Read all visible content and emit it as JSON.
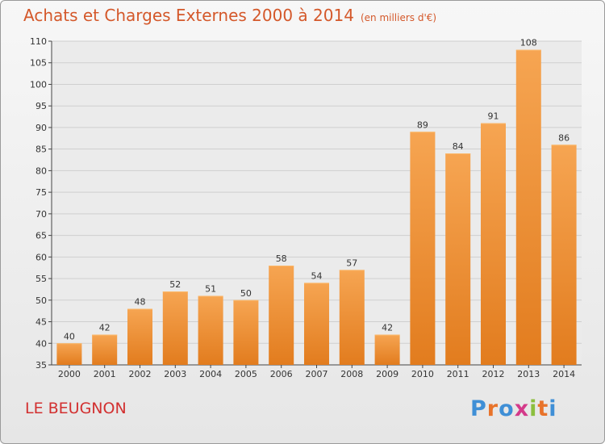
{
  "header": {
    "title": "Achats et Charges Externes 2000 à 2014",
    "unit": "(en milliers d'€)"
  },
  "footer": {
    "commune": "LE BEUGNON",
    "brand": "Proxiti"
  },
  "colors": {
    "title": "#d4582a",
    "bar": "#f0943a",
    "commune": "#d23030"
  },
  "chart_data": {
    "type": "bar",
    "title": "Achats et Charges Externes 2000 à 2014",
    "subtitle": "(en milliers d'€)",
    "categories": [
      "2000",
      "2001",
      "2002",
      "2003",
      "2004",
      "2005",
      "2006",
      "2007",
      "2008",
      "2009",
      "2010",
      "2011",
      "2012",
      "2013",
      "2014"
    ],
    "values": [
      40,
      42,
      48,
      52,
      51,
      50,
      58,
      54,
      57,
      42,
      89,
      84,
      91,
      108,
      86
    ],
    "ylim": [
      35,
      110
    ],
    "yticks": [
      35,
      40,
      45,
      50,
      55,
      60,
      65,
      70,
      75,
      80,
      85,
      90,
      95,
      100,
      105,
      110
    ],
    "grid": true,
    "data_labels": true
  }
}
